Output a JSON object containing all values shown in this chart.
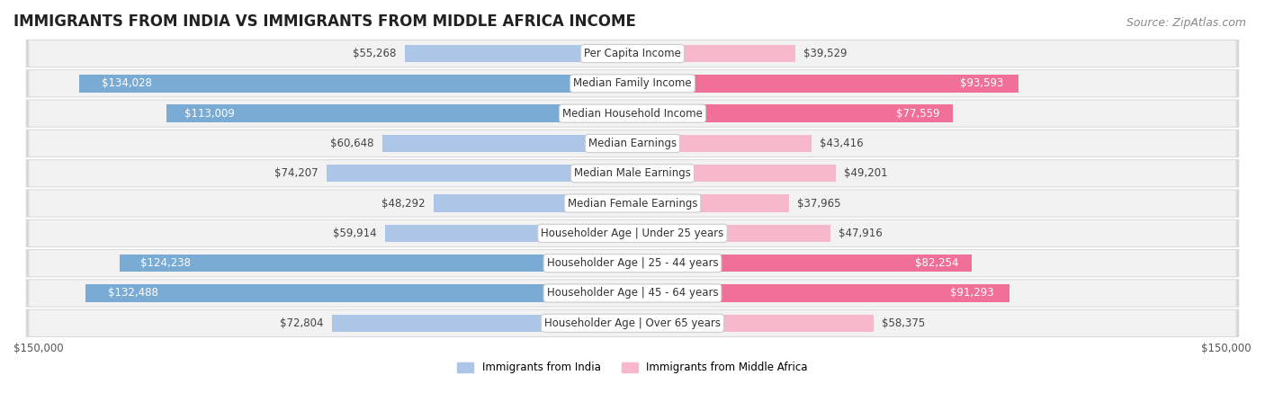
{
  "title": "IMMIGRANTS FROM INDIA VS IMMIGRANTS FROM MIDDLE AFRICA INCOME",
  "source": "Source: ZipAtlas.com",
  "categories": [
    "Per Capita Income",
    "Median Family Income",
    "Median Household Income",
    "Median Earnings",
    "Median Male Earnings",
    "Median Female Earnings",
    "Householder Age | Under 25 years",
    "Householder Age | 25 - 44 years",
    "Householder Age | 45 - 64 years",
    "Householder Age | Over 65 years"
  ],
  "india_values": [
    55268,
    134028,
    113009,
    60648,
    74207,
    48292,
    59914,
    124238,
    132488,
    72804
  ],
  "africa_values": [
    39529,
    93593,
    77559,
    43416,
    49201,
    37965,
    47916,
    82254,
    91293,
    58375
  ],
  "india_color_light": "#adc6e8",
  "india_color_dark": "#7aabd4",
  "africa_color_light": "#f7b8cc",
  "africa_color_dark": "#f07098",
  "india_threshold": 90000,
  "africa_threshold": 70000,
  "row_bg_color": "#f2f2f2",
  "row_border_color": "#d8d8d8",
  "max_value": 150000,
  "xlabel_left": "$150,000",
  "xlabel_right": "$150,000",
  "legend_india": "Immigrants from India",
  "legend_africa": "Immigrants from Middle Africa",
  "title_fontsize": 12,
  "source_fontsize": 9,
  "label_fontsize": 8.5,
  "category_fontsize": 8.5,
  "bar_height": 0.58
}
